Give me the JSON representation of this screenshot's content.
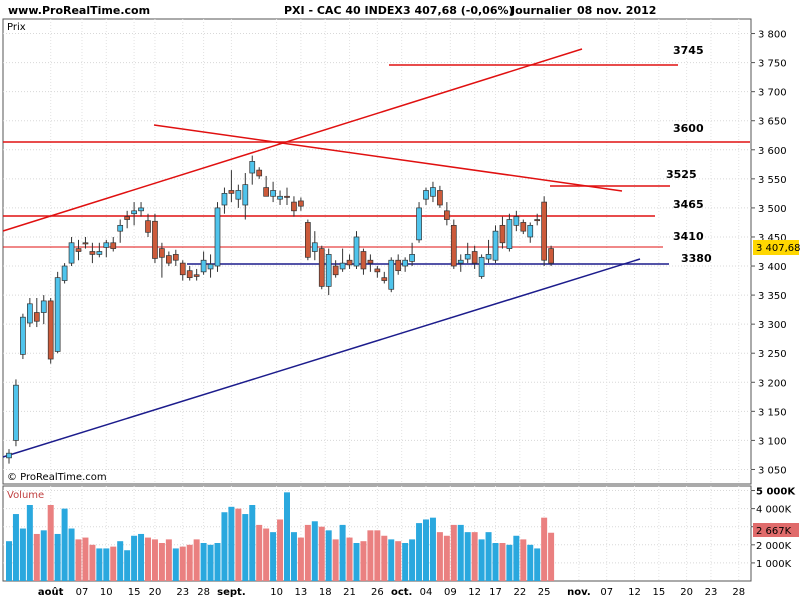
{
  "header": {
    "site": "www.ProRealTime.com",
    "instrument": "PXI - CAC 40 INDEX",
    "quote": "3 407,68 (-0,06%)",
    "period": "Journalier",
    "date": "08 nov. 2012"
  },
  "price_panel": {
    "label": "Prix",
    "watermark": "© ProRealTime.com",
    "last_price_tag": "3 407,68"
  },
  "volume_panel": {
    "label": "Volume",
    "last_volume_tag": "2 667K"
  },
  "colors": {
    "up": "#4fc4ec",
    "down": "#cc5a3a",
    "level_line": "#e01010",
    "support_line": "#1c1c8c",
    "vol_up": "#2aa8de",
    "vol_down": "#ea8080",
    "price_tag": "#ffd700"
  },
  "chart_data": [
    {
      "type": "candlestick",
      "ylim": [
        3025,
        3825
      ],
      "y_ticks": [
        "3 050",
        "3 100",
        "3 150",
        "3 200",
        "3 250",
        "3 300",
        "3 350",
        "3 400",
        "3 450",
        "3 500",
        "3 550",
        "3 600",
        "3 650",
        "3 700",
        "3 750",
        "3 800"
      ],
      "x_ticks": [
        "août",
        "07",
        "10",
        "15",
        "20",
        "23",
        "28",
        "sept.",
        "10",
        "13",
        "18",
        "21",
        "26",
        "oct.",
        "04",
        "09",
        "12",
        "17",
        "22",
        "25",
        "nov.",
        "07",
        "12",
        "15",
        "20",
        "23",
        "28"
      ],
      "level_labels": [
        "3745",
        "3600",
        "3525",
        "3465",
        "3410",
        "3380"
      ],
      "candles": [
        {
          "o": 3070,
          "h": 3085,
          "l": 3060,
          "c": 3078
        },
        {
          "o": 3100,
          "h": 3205,
          "l": 3090,
          "c": 3195
        },
        {
          "o": 3248,
          "h": 3318,
          "l": 3240,
          "c": 3312
        },
        {
          "o": 3302,
          "h": 3345,
          "l": 3295,
          "c": 3335
        },
        {
          "o": 3320,
          "h": 3345,
          "l": 3295,
          "c": 3305
        },
        {
          "o": 3320,
          "h": 3350,
          "l": 3300,
          "c": 3340
        },
        {
          "o": 3340,
          "h": 3345,
          "l": 3232,
          "c": 3240
        },
        {
          "o": 3253,
          "h": 3390,
          "l": 3250,
          "c": 3380
        },
        {
          "o": 3375,
          "h": 3405,
          "l": 3370,
          "c": 3400
        },
        {
          "o": 3405,
          "h": 3450,
          "l": 3400,
          "c": 3440
        },
        {
          "o": 3430,
          "h": 3445,
          "l": 3410,
          "c": 3425
        },
        {
          "o": 3440,
          "h": 3450,
          "l": 3430,
          "c": 3438
        },
        {
          "o": 3425,
          "h": 3440,
          "l": 3405,
          "c": 3420
        },
        {
          "o": 3420,
          "h": 3440,
          "l": 3415,
          "c": 3425
        },
        {
          "o": 3432,
          "h": 3445,
          "l": 3415,
          "c": 3440
        },
        {
          "o": 3440,
          "h": 3450,
          "l": 3425,
          "c": 3430
        },
        {
          "o": 3460,
          "h": 3480,
          "l": 3440,
          "c": 3470
        },
        {
          "o": 3485,
          "h": 3495,
          "l": 3465,
          "c": 3480
        },
        {
          "o": 3490,
          "h": 3510,
          "l": 3470,
          "c": 3495
        },
        {
          "o": 3495,
          "h": 3510,
          "l": 3485,
          "c": 3500
        },
        {
          "o": 3478,
          "h": 3490,
          "l": 3450,
          "c": 3458
        },
        {
          "o": 3477,
          "h": 3490,
          "l": 3405,
          "c": 3413
        },
        {
          "o": 3430,
          "h": 3440,
          "l": 3380,
          "c": 3415
        },
        {
          "o": 3418,
          "h": 3425,
          "l": 3400,
          "c": 3405
        },
        {
          "o": 3420,
          "h": 3428,
          "l": 3400,
          "c": 3410
        },
        {
          "o": 3405,
          "h": 3410,
          "l": 3375,
          "c": 3385
        },
        {
          "o": 3392,
          "h": 3400,
          "l": 3375,
          "c": 3380
        },
        {
          "o": 3385,
          "h": 3395,
          "l": 3375,
          "c": 3382
        },
        {
          "o": 3390,
          "h": 3425,
          "l": 3385,
          "c": 3410
        },
        {
          "o": 3395,
          "h": 3420,
          "l": 3380,
          "c": 3403
        },
        {
          "o": 3400,
          "h": 3510,
          "l": 3390,
          "c": 3500
        },
        {
          "o": 3505,
          "h": 3535,
          "l": 3490,
          "c": 3525
        },
        {
          "o": 3530,
          "h": 3565,
          "l": 3510,
          "c": 3525
        },
        {
          "o": 3515,
          "h": 3540,
          "l": 3500,
          "c": 3530
        },
        {
          "o": 3505,
          "h": 3560,
          "l": 3480,
          "c": 3540
        },
        {
          "o": 3560,
          "h": 3590,
          "l": 3540,
          "c": 3580
        },
        {
          "o": 3565,
          "h": 3570,
          "l": 3550,
          "c": 3555
        },
        {
          "o": 3535,
          "h": 3555,
          "l": 3520,
          "c": 3520
        },
        {
          "o": 3520,
          "h": 3545,
          "l": 3510,
          "c": 3530
        },
        {
          "o": 3515,
          "h": 3530,
          "l": 3505,
          "c": 3520
        },
        {
          "o": 3520,
          "h": 3535,
          "l": 3505,
          "c": 3518
        },
        {
          "o": 3510,
          "h": 3520,
          "l": 3485,
          "c": 3495
        },
        {
          "o": 3512,
          "h": 3518,
          "l": 3495,
          "c": 3503
        },
        {
          "o": 3475,
          "h": 3480,
          "l": 3410,
          "c": 3415
        },
        {
          "o": 3425,
          "h": 3460,
          "l": 3410,
          "c": 3440
        },
        {
          "o": 3430,
          "h": 3435,
          "l": 3360,
          "c": 3365
        },
        {
          "o": 3365,
          "h": 3430,
          "l": 3350,
          "c": 3420
        },
        {
          "o": 3400,
          "h": 3410,
          "l": 3380,
          "c": 3385
        },
        {
          "o": 3395,
          "h": 3430,
          "l": 3390,
          "c": 3405
        },
        {
          "o": 3410,
          "h": 3420,
          "l": 3395,
          "c": 3402
        },
        {
          "o": 3400,
          "h": 3460,
          "l": 3395,
          "c": 3450
        },
        {
          "o": 3425,
          "h": 3430,
          "l": 3385,
          "c": 3395
        },
        {
          "o": 3410,
          "h": 3420,
          "l": 3390,
          "c": 3405
        },
        {
          "o": 3395,
          "h": 3400,
          "l": 3380,
          "c": 3390
        },
        {
          "o": 3380,
          "h": 3390,
          "l": 3370,
          "c": 3375
        },
        {
          "o": 3360,
          "h": 3415,
          "l": 3355,
          "c": 3410
        },
        {
          "o": 3410,
          "h": 3420,
          "l": 3385,
          "c": 3392
        },
        {
          "o": 3400,
          "h": 3415,
          "l": 3390,
          "c": 3410
        },
        {
          "o": 3408,
          "h": 3440,
          "l": 3400,
          "c": 3420
        },
        {
          "o": 3445,
          "h": 3510,
          "l": 3440,
          "c": 3500
        },
        {
          "o": 3515,
          "h": 3535,
          "l": 3505,
          "c": 3530
        },
        {
          "o": 3520,
          "h": 3545,
          "l": 3510,
          "c": 3535
        },
        {
          "o": 3530,
          "h": 3538,
          "l": 3500,
          "c": 3505
        },
        {
          "o": 3495,
          "h": 3510,
          "l": 3470,
          "c": 3480
        },
        {
          "o": 3470,
          "h": 3480,
          "l": 3395,
          "c": 3400
        },
        {
          "o": 3405,
          "h": 3420,
          "l": 3390,
          "c": 3410
        },
        {
          "o": 3412,
          "h": 3440,
          "l": 3405,
          "c": 3420
        },
        {
          "o": 3425,
          "h": 3435,
          "l": 3395,
          "c": 3405
        },
        {
          "o": 3382,
          "h": 3420,
          "l": 3378,
          "c": 3415
        },
        {
          "o": 3412,
          "h": 3445,
          "l": 3405,
          "c": 3420
        },
        {
          "o": 3410,
          "h": 3470,
          "l": 3405,
          "c": 3460
        },
        {
          "o": 3470,
          "h": 3485,
          "l": 3430,
          "c": 3440
        },
        {
          "o": 3430,
          "h": 3490,
          "l": 3425,
          "c": 3480
        },
        {
          "o": 3470,
          "h": 3495,
          "l": 3460,
          "c": 3485
        },
        {
          "o": 3475,
          "h": 3480,
          "l": 3455,
          "c": 3460
        },
        {
          "o": 3450,
          "h": 3475,
          "l": 3440,
          "c": 3470
        },
        {
          "o": 3480,
          "h": 3490,
          "l": 3470,
          "c": 3478
        },
        {
          "o": 3510,
          "h": 3520,
          "l": 3400,
          "c": 3410
        },
        {
          "o": 3430,
          "h": 3435,
          "l": 3400,
          "c": 3405
        }
      ]
    },
    {
      "type": "bar",
      "title": "Volume",
      "ylim": [
        0,
        5250
      ],
      "y_ticks": [
        "1 000K",
        "2 000K",
        "3 000K",
        "4 000K",
        "5 000K"
      ],
      "values": [
        2200,
        3700,
        2900,
        4200,
        2600,
        2800,
        4200,
        2600,
        4000,
        2900,
        2300,
        2400,
        2000,
        1800,
        1800,
        1900,
        2200,
        1700,
        2500,
        2600,
        2400,
        2300,
        2100,
        2300,
        1800,
        1900,
        2000,
        2300,
        2100,
        2000,
        2100,
        3800,
        4100,
        4000,
        3700,
        4200,
        3100,
        2900,
        2700,
        3400,
        4900,
        2700,
        2400,
        3100,
        3300,
        3000,
        2800,
        2300,
        3100,
        2400,
        2100,
        2200,
        2800,
        2800,
        2500,
        2300,
        2200,
        2100,
        2300,
        3200,
        3400,
        3500,
        2700,
        2500,
        3100,
        3100,
        2700,
        2700,
        2300,
        2700,
        2100,
        2100,
        2000,
        2500,
        2300,
        2000,
        1800,
        3500,
        2667
      ],
      "up": [
        1,
        1,
        1,
        1,
        0,
        1,
        0,
        1,
        1,
        1,
        0,
        0,
        0,
        1,
        1,
        0,
        1,
        1,
        1,
        1,
        0,
        0,
        0,
        0,
        1,
        0,
        0,
        0,
        1,
        1,
        1,
        1,
        1,
        0,
        1,
        1,
        0,
        0,
        1,
        0,
        1,
        1,
        0,
        0,
        1,
        0,
        1,
        0,
        1,
        0,
        1,
        0,
        0,
        0,
        0,
        1,
        0,
        1,
        1,
        1,
        1,
        1,
        0,
        0,
        0,
        1,
        1,
        0,
        1,
        1,
        1,
        0,
        1,
        1,
        0,
        1,
        1,
        0,
        0
      ]
    }
  ]
}
